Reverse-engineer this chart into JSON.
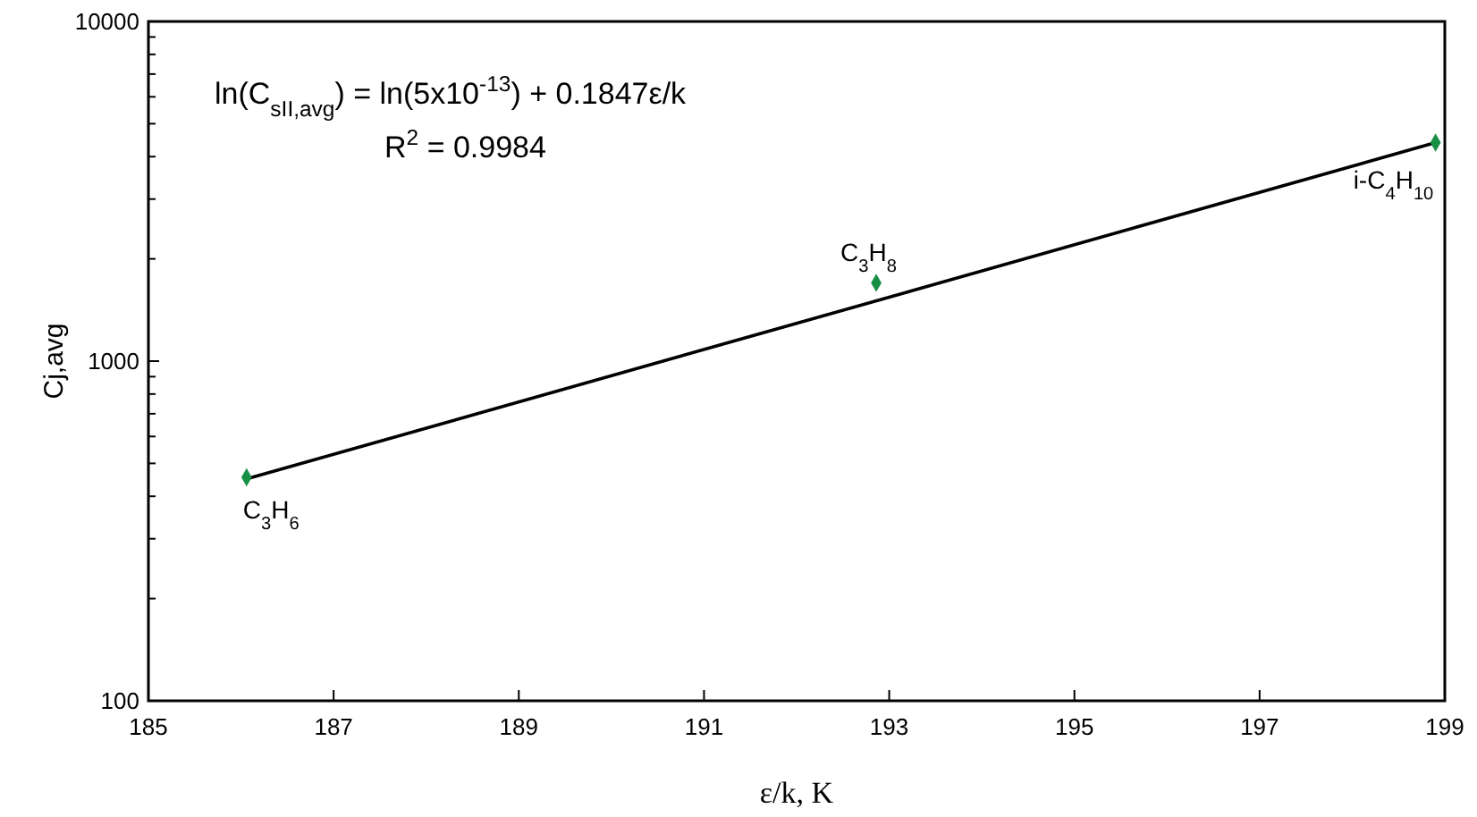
{
  "chart_data": {
    "type": "scatter",
    "xlabel": "ε/k, K",
    "ylabel": "Cj,avg",
    "xlim": [
      185,
      199
    ],
    "xticks": [
      185,
      187,
      189,
      191,
      193,
      195,
      197,
      199
    ],
    "ylim": [
      100,
      10000
    ],
    "yticks": [
      100,
      1000,
      10000
    ],
    "log": "y",
    "grid": false,
    "marker": "diamond",
    "series": [
      {
        "color": "#179046",
        "x": [
          186.06,
          192.86,
          198.9
        ],
        "values": [
          455,
          1700,
          4400
        ]
      },
      {
        "type": "line",
        "color": "#000000",
        "x": [
          186.06,
          198.9
        ],
        "values": [
          450,
          4400
        ],
        "marker": "none",
        "line_style": "solid"
      }
    ],
    "annotations": [
      "ln(C$_{sII,avg}$) = ln(5x10$^{-13}$) + 0.1847ε/k",
      "R$^{2}$ = 0.9984",
      {
        "text": "C$_{3}$H$_{6}$",
        "x": 186.06,
        "y": 455
      },
      {
        "text": "C$_{3}$H$_{8}$",
        "x": 192.86,
        "y": 1700
      },
      {
        "text": "i-C$_{4}$H$_{10}$",
        "x": 198.9,
        "y": 4400
      }
    ]
  }
}
